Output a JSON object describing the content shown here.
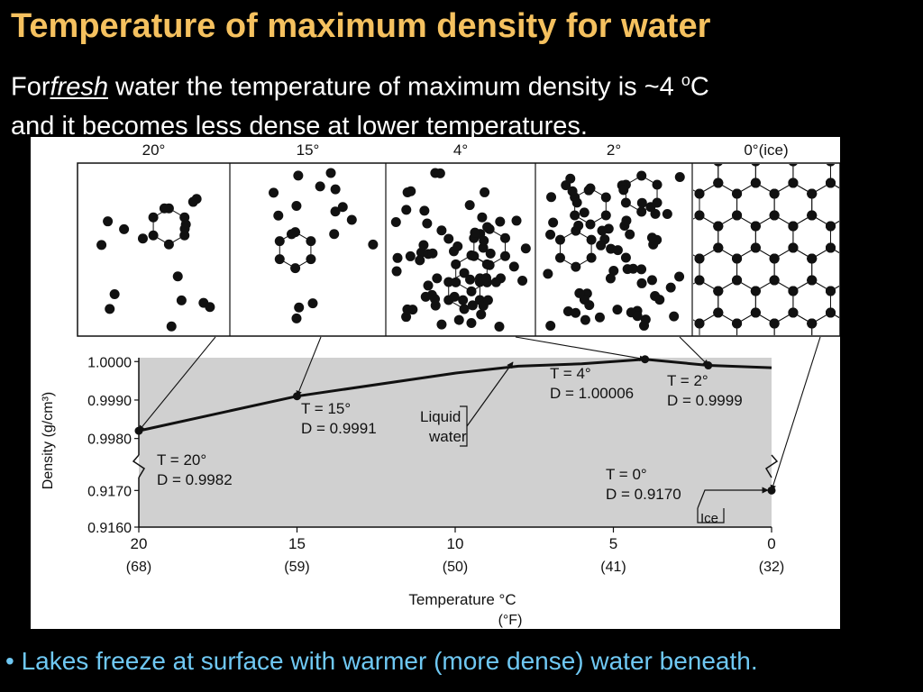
{
  "slide": {
    "title": "Temperature of maximum density for water",
    "subtitle": {
      "part1": "For",
      "fresh": "fresh",
      "part2": " water the temperature of maximum density is ~4 ",
      "sup": "o",
      "part3": "C",
      "line2": "and it becomes less dense at lower temperatures."
    },
    "bullet": "• Lakes freeze at  surface with warmer (more dense) water beneath."
  },
  "panels": [
    {
      "label": "20°",
      "molecules": "sparse"
    },
    {
      "label": "15°",
      "molecules": "sparse"
    },
    {
      "label": "4°",
      "molecules": "dense"
    },
    {
      "label": "2°",
      "molecules": "dense"
    },
    {
      "label": "0°(ice)",
      "molecules": "hexagonal-lattice"
    }
  ],
  "chart_data": {
    "type": "line",
    "xlabel": "Temperature °C",
    "xlabel2": "(°F)",
    "ylabel": "Density (g/cm³)",
    "x_ticks": [
      {
        "c": "20",
        "f": "(68)"
      },
      {
        "c": "15",
        "f": "(59)"
      },
      {
        "c": "10",
        "f": "(50)"
      },
      {
        "c": "5",
        "f": "(41)"
      },
      {
        "c": "0",
        "f": "(32)"
      }
    ],
    "y_ticks": [
      "1.0000",
      "0.9990",
      "0.9980",
      "0.9170",
      "0.9160"
    ],
    "xlim": [
      20,
      0
    ],
    "ylim_upper": [
      0.9975,
      1.0001
    ],
    "ylim_lower": [
      0.916,
      0.9175
    ],
    "axis_break": true,
    "grid": false,
    "series": [
      {
        "name": "Liquid water",
        "x": [
          20,
          15,
          10,
          8,
          6,
          4,
          2,
          0
        ],
        "y": [
          0.9982,
          0.9991,
          0.9997,
          0.99988,
          0.99994,
          1.00006,
          0.9999,
          0.99984
        ]
      },
      {
        "name": "Ice",
        "x": [
          0
        ],
        "y": [
          0.917
        ]
      }
    ],
    "points": [
      {
        "x": 20,
        "y": 0.9982,
        "label_t": "T = 20°",
        "label_d": "D = 0.9982"
      },
      {
        "x": 15,
        "y": 0.9991,
        "label_t": "T = 15°",
        "label_d": "D = 0.9991"
      },
      {
        "x": 4,
        "y": 1.00006,
        "label_t": "T = 4°",
        "label_d": "D = 1.00006"
      },
      {
        "x": 2,
        "y": 0.9999,
        "label_t": "T = 2°",
        "label_d": "D = 0.9999"
      },
      {
        "x": 0,
        "y": 0.917,
        "label_t": "T = 0°",
        "label_d": "D = 0.9170",
        "segment": "lower"
      }
    ],
    "annotations": {
      "liquid_line1": "Liquid",
      "liquid_line2": "water",
      "ice": "Ice"
    }
  }
}
